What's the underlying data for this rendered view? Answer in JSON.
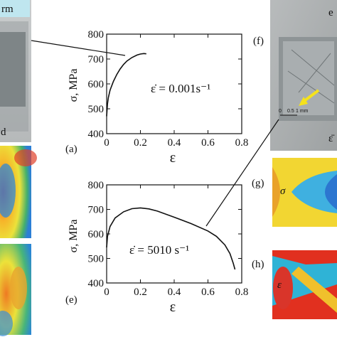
{
  "left_panel": {
    "top_label": "rm",
    "side_label": "d"
  },
  "right_panel": {
    "top_label": "e",
    "scale_bar_min": "0",
    "scale_bar_mid": "0.5",
    "scale_bar_max": "1 mm",
    "corner_symbol": "ε̄"
  },
  "panels": {
    "a": "(a)",
    "e": "(e)",
    "f": "(f)",
    "g": "(g)",
    "h": "(h)"
  },
  "contours": {
    "g_symbol": "σ",
    "h_symbol": "ε"
  },
  "chart_data": [
    {
      "type": "line",
      "panel": "(a)",
      "xlabel": "ε",
      "ylabel": "σ, MPa",
      "xlim": [
        0,
        0.8
      ],
      "ylim": [
        400,
        800
      ],
      "xticks": [
        "0",
        "0.2",
        "0.4",
        "0.6",
        "0.8"
      ],
      "yticks": [
        "400",
        "500",
        "600",
        "700",
        "800"
      ],
      "annotation": "ε̇ = 0.001s⁻¹",
      "grid": false,
      "series": [
        {
          "x": [
            0,
            0.005,
            0.01,
            0.02,
            0.04,
            0.06,
            0.08,
            0.1,
            0.12,
            0.15,
            0.18,
            0.2,
            0.22,
            0.235
          ],
          "y": [
            470,
            520,
            545,
            575,
            610,
            638,
            660,
            678,
            692,
            706,
            716,
            720,
            722,
            721
          ]
        }
      ]
    },
    {
      "type": "line",
      "panel": "(e)",
      "xlabel": "ε",
      "ylabel": "σ, MPa",
      "xlim": [
        0,
        0.8
      ],
      "ylim": [
        400,
        800
      ],
      "xticks": [
        "0",
        "0.2",
        "0.4",
        "0.6",
        "0.8"
      ],
      "yticks": [
        "400",
        "500",
        "600",
        "700",
        "800"
      ],
      "annotation": "ε̇ = 5010 s⁻¹",
      "grid": false,
      "series": [
        {
          "x": [
            0,
            0.005,
            0.02,
            0.05,
            0.1,
            0.15,
            0.2,
            0.25,
            0.3,
            0.4,
            0.5,
            0.6,
            0.65,
            0.7,
            0.73,
            0.75,
            0.76
          ],
          "y": [
            545,
            590,
            630,
            665,
            690,
            703,
            706,
            702,
            693,
            668,
            642,
            612,
            590,
            555,
            520,
            480,
            455
          ]
        }
      ]
    }
  ]
}
